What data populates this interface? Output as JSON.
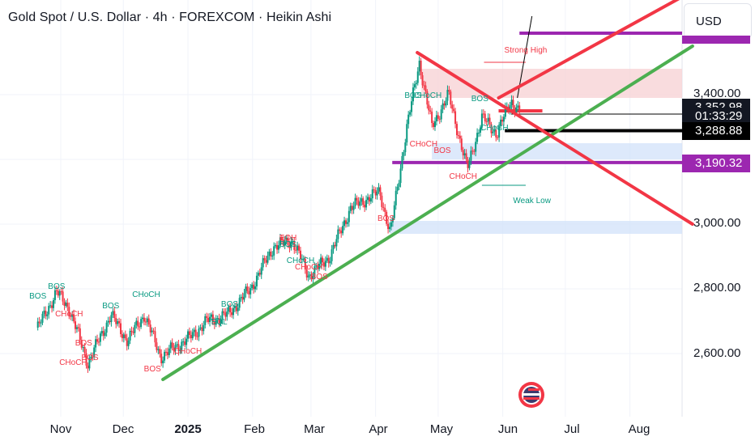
{
  "header": {
    "title": "Gold Spot / U.S. Dollar · 4h · FOREXCOM · Heikin Ashi",
    "currency_button": "USD"
  },
  "price_tags": {
    "current_price": "3,352.98",
    "countdown": "01:33:29",
    "line_price": "3,288.88",
    "purple_level": "3,190.32"
  },
  "colors": {
    "up": "#089981",
    "down": "#f23645",
    "trendline_green": "#4caf50",
    "trendline_red": "#f23645",
    "level_purple": "#9c27b0",
    "zone_red": "#f8d3d6",
    "zone_blue": "#d4e3fa"
  },
  "annotations": {
    "strong_high": "Strong High",
    "weak_low": "Weak Low"
  },
  "chart_data": {
    "type": "candlestick",
    "style": "Heikin Ashi",
    "symbol": "Gold Spot / U.S. Dollar",
    "timeframe": "4h",
    "exchange": "FOREXCOM",
    "currency": "USD",
    "x_tick_labels": [
      "Nov",
      "Dec",
      "2025",
      "Feb",
      "Mar",
      "Apr",
      "May",
      "Jun",
      "Jul",
      "Aug"
    ],
    "y_tick_labels": [
      "3,400.00",
      "3,000.00",
      "2,800.00",
      "2,600.00"
    ],
    "ylim": [
      2450,
      3720
    ],
    "price_path": [
      [
        "2024-10-21",
        2680
      ],
      [
        "2024-10-30",
        2790
      ],
      [
        "2024-11-05",
        2740
      ],
      [
        "2024-11-14",
        2570
      ],
      [
        "2024-11-25",
        2720
      ],
      [
        "2024-12-03",
        2640
      ],
      [
        "2024-12-11",
        2720
      ],
      [
        "2024-12-19",
        2590
      ],
      [
        "2025-01-02",
        2650
      ],
      [
        "2025-01-10",
        2700
      ],
      [
        "2025-01-20",
        2720
      ],
      [
        "2025-01-31",
        2800
      ],
      [
        "2025-02-11",
        2930
      ],
      [
        "2025-02-20",
        2950
      ],
      [
        "2025-02-28",
        2840
      ],
      [
        "2025-03-10",
        2900
      ],
      [
        "2025-03-20",
        3050
      ],
      [
        "2025-04-03",
        3100
      ],
      [
        "2025-04-08",
        2970
      ],
      [
        "2025-04-16",
        3300
      ],
      [
        "2025-04-22",
        3500
      ],
      [
        "2025-04-28",
        3300
      ],
      [
        "2025-05-06",
        3400
      ],
      [
        "2025-05-15",
        3170
      ],
      [
        "2025-05-22",
        3330
      ],
      [
        "2025-05-29",
        3280
      ],
      [
        "2025-06-05",
        3380
      ],
      [
        "2025-06-09",
        3350
      ]
    ],
    "levels": {
      "strong_high": 3500,
      "current_price": 3352.98,
      "line_price": 3288.88,
      "purple_upper": 3590,
      "purple_lower": 3190.32,
      "weak_low": 3120
    },
    "zones": [
      {
        "name": "supply",
        "from": 3390,
        "to": 3480
      },
      {
        "name": "demand",
        "from": 3200,
        "to": 3250
      },
      {
        "name": "demand",
        "from": 2970,
        "to": 3010
      }
    ],
    "trendlines": [
      {
        "name": "green",
        "from": [
          "2024-12-20",
          2520
        ],
        "to": [
          "2025-08-31",
          3550
        ]
      },
      {
        "name": "red-descending",
        "from": [
          "2025-04-21",
          3530
        ],
        "to": [
          "2025-08-31",
          3000
        ]
      },
      {
        "name": "red-ascending",
        "from": [
          "2025-05-30",
          3390
        ],
        "to": [
          "2025-08-31",
          3720
        ]
      }
    ],
    "structure_labels": [
      {
        "text": "BOS",
        "date": "2024-10-21",
        "price": 2770,
        "color": "up"
      },
      {
        "text": "BOS",
        "date": "2024-10-30",
        "price": 2800,
        "color": "up"
      },
      {
        "text": "CHoCH",
        "date": "2024-11-05",
        "price": 2715,
        "color": "down"
      },
      {
        "text": "CHoCH",
        "date": "2024-11-07",
        "price": 2565,
        "color": "down"
      },
      {
        "text": "BOS",
        "date": "2024-11-12",
        "price": 2625,
        "color": "down"
      },
      {
        "text": "BOS",
        "date": "2024-11-15",
        "price": 2580,
        "color": "down"
      },
      {
        "text": "BOS",
        "date": "2024-11-25",
        "price": 2740,
        "color": "up"
      },
      {
        "text": "CHoCH",
        "date": "2024-12-12",
        "price": 2775,
        "color": "up"
      },
      {
        "text": "BOS",
        "date": "2024-12-15",
        "price": 2545,
        "color": "down"
      },
      {
        "text": "CHoCH",
        "date": "2025-01-01",
        "price": 2600,
        "color": "down"
      },
      {
        "text": "EQL",
        "date": "2025-01-16",
        "price": 2690,
        "color": "up"
      },
      {
        "text": "BOS",
        "date": "2025-01-21",
        "price": 2745,
        "color": "up"
      },
      {
        "text": "EQH",
        "date": "2025-02-18",
        "price": 2950,
        "color": "down"
      },
      {
        "text": "BOS",
        "date": "2025-02-18",
        "price": 2930,
        "color": "up"
      },
      {
        "text": "CHoCH",
        "date": "2025-02-24",
        "price": 2880,
        "color": "up"
      },
      {
        "text": "CHoCH",
        "date": "2025-02-28",
        "price": 2860,
        "color": "down"
      },
      {
        "text": "BOS",
        "date": "2025-03-05",
        "price": 2830,
        "color": "down"
      },
      {
        "text": "BOS",
        "date": "2025-04-06",
        "price": 3010,
        "color": "down"
      },
      {
        "text": "BOS",
        "date": "2025-04-19",
        "price": 3390,
        "color": "up"
      },
      {
        "text": "CHoCH",
        "date": "2025-04-26",
        "price": 3390,
        "color": "up"
      },
      {
        "text": "CHoCH",
        "date": "2025-04-24",
        "price": 3240,
        "color": "down"
      },
      {
        "text": "BOS",
        "date": "2025-05-03",
        "price": 3220,
        "color": "down"
      },
      {
        "text": "CHoCH",
        "date": "2025-05-13",
        "price": 3140,
        "color": "down"
      },
      {
        "text": "BOS",
        "date": "2025-05-21",
        "price": 3380,
        "color": "up"
      },
      {
        "text": "CHoCH",
        "date": "2025-05-28",
        "price": 3290,
        "color": "up"
      }
    ]
  }
}
